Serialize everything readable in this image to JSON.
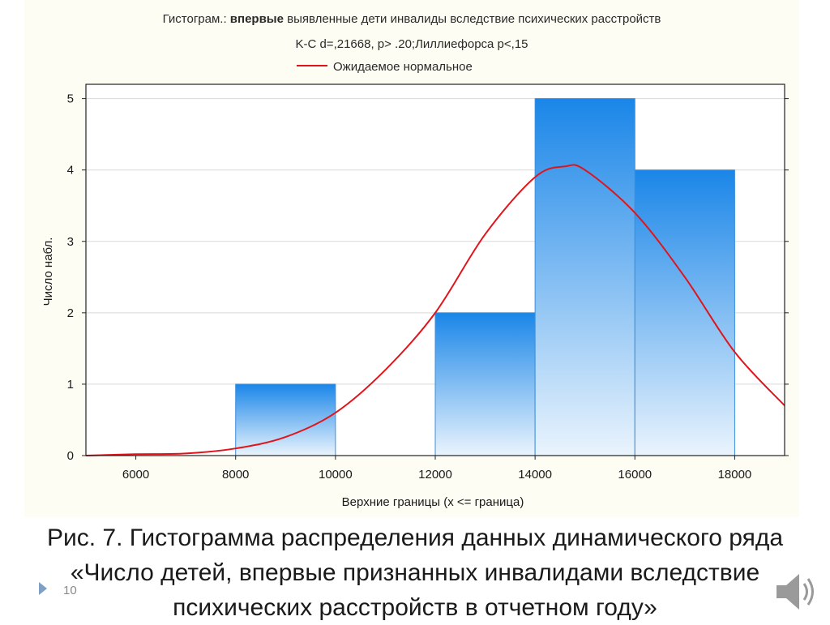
{
  "chart_data": {
    "type": "bar",
    "title_prefix": "Гистограм.: ",
    "title_bold": "впервые",
    "title_rest": " выявленные дети инвалиды вследствие психических расстройств",
    "subtitle": "K-C d=,21668, p> .20;Лиллиефорса p<,15",
    "legend": [
      {
        "name": "Ожидаемое нормальное",
        "color": "#e0151b"
      }
    ],
    "xlabel": "Верхние границы (x <= граница)",
    "ylabel": "Число набл.",
    "xlim": [
      5000,
      19000
    ],
    "ylim": [
      0,
      5.2
    ],
    "xticks": [
      6000,
      8000,
      10000,
      12000,
      14000,
      16000,
      18000
    ],
    "yticks": [
      0,
      1,
      2,
      3,
      4,
      5
    ],
    "bins": [
      {
        "from": 8000,
        "to": 10000,
        "value": 1
      },
      {
        "from": 12000,
        "to": 14000,
        "value": 2
      },
      {
        "from": 14000,
        "to": 16000,
        "value": 5
      },
      {
        "from": 16000,
        "to": 18000,
        "value": 4
      }
    ],
    "normal_curve": {
      "x": [
        5000,
        6000,
        7000,
        8000,
        9000,
        10000,
        11000,
        12000,
        13000,
        14000,
        14600,
        15000,
        16000,
        17000,
        18000,
        19000
      ],
      "y": [
        0.0,
        0.02,
        0.03,
        0.1,
        0.26,
        0.6,
        1.2,
        2.0,
        3.1,
        3.9,
        4.05,
        4.0,
        3.4,
        2.5,
        1.45,
        0.7
      ]
    },
    "grid": true,
    "colors": {
      "bar_top": "#1a86e8",
      "bar_bottom": "#eaf4fd",
      "curve": "#e0151b"
    }
  },
  "caption": "Рис. 7. Гистограмма распределения данных динамического ряда «Число детей, впервые признанных инвалидами вследствие психических расстройств в отчетном году»",
  "slide_number": "10",
  "icons": {
    "nav": "nav-arrow-icon",
    "audio": "speaker-icon"
  }
}
